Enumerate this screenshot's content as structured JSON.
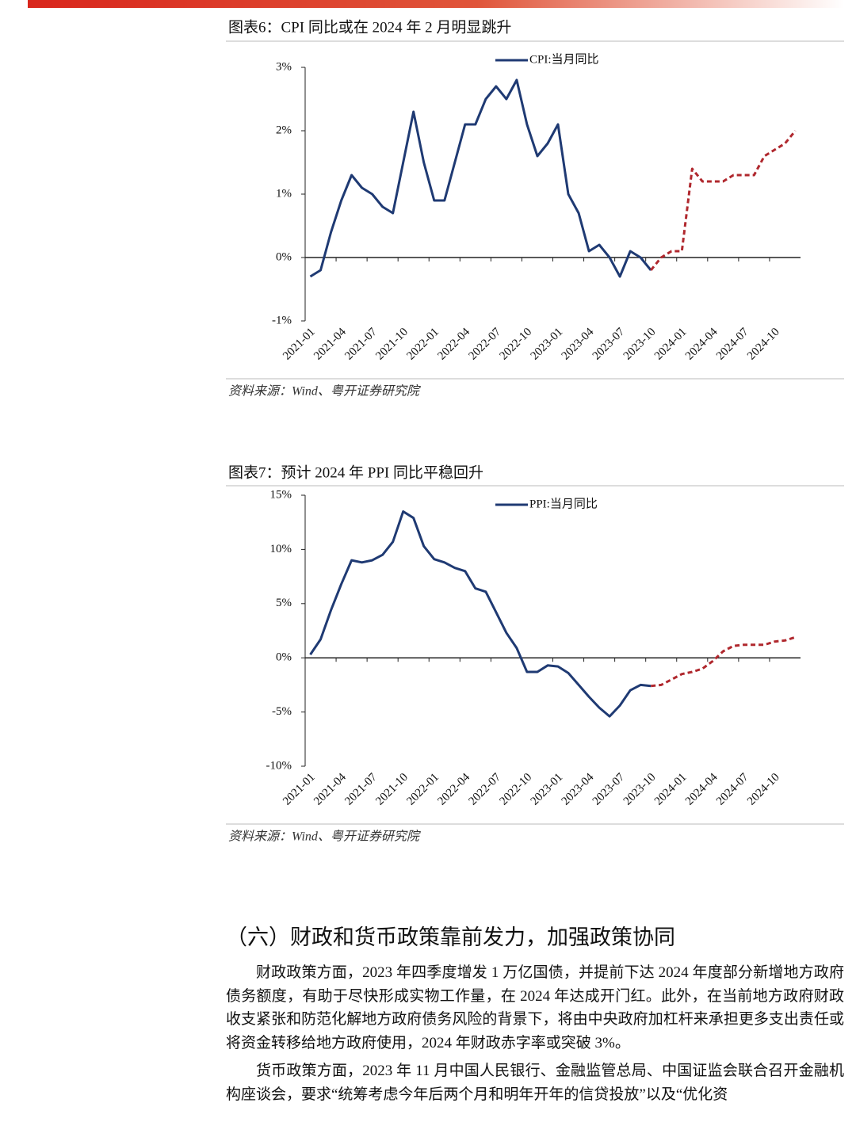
{
  "chart_data": [
    {
      "type": "line",
      "title": "图表6：CPI 同比或在 2024 年 2 月明显跳升",
      "source": "资料来源：Wind、粤开证券研究院",
      "categories": [
        "2021-01",
        null,
        null,
        "2021-04",
        null,
        null,
        "2021-07",
        null,
        null,
        "2021-10",
        null,
        null,
        "2022-01",
        null,
        null,
        "2022-04",
        null,
        null,
        "2022-07",
        null,
        null,
        "2022-10",
        null,
        null,
        "2023-01",
        null,
        null,
        "2023-04",
        null,
        null,
        "2023-07",
        null,
        null,
        "2023-10",
        null,
        null,
        "2024-01",
        null,
        null,
        "2024-04",
        null,
        null,
        "2024-07",
        null,
        null,
        "2024-10",
        null,
        null
      ],
      "series": [
        {
          "name": "CPI:当月同比",
          "color": "#1f3a73",
          "line_style": "solid",
          "values": [
            -0.3,
            -0.2,
            0.4,
            0.9,
            1.3,
            1.1,
            1.0,
            0.8,
            0.7,
            1.5,
            2.3,
            1.5,
            0.9,
            0.9,
            1.5,
            2.1,
            2.1,
            2.5,
            2.7,
            2.5,
            2.8,
            2.1,
            1.6,
            1.8,
            2.1,
            1.0,
            0.7,
            0.1,
            0.2,
            0.0,
            -0.3,
            0.1,
            0.0,
            -0.2,
            null,
            null,
            null,
            null,
            null,
            null,
            null,
            null,
            null,
            null,
            null,
            null,
            null,
            null
          ]
        },
        {
          "color": "#b0282e",
          "line_style": "dashed",
          "values": [
            null,
            null,
            null,
            null,
            null,
            null,
            null,
            null,
            null,
            null,
            null,
            null,
            null,
            null,
            null,
            null,
            null,
            null,
            null,
            null,
            null,
            null,
            null,
            null,
            null,
            null,
            null,
            null,
            null,
            null,
            null,
            null,
            null,
            -0.2,
            0.0,
            0.1,
            0.1,
            1.4,
            1.2,
            1.2,
            1.2,
            1.3,
            1.3,
            1.3,
            1.6,
            1.7,
            1.8,
            2.0
          ]
        }
      ],
      "ylim": [
        -1,
        3
      ],
      "yticks": [
        {
          "value": -1,
          "label": "-1%"
        },
        {
          "value": 0,
          "label": "0%"
        },
        {
          "value": 1,
          "label": "1%"
        },
        {
          "value": 2,
          "label": "2%"
        },
        {
          "value": 3,
          "label": "3%"
        }
      ],
      "grid": false,
      "legend": "top"
    },
    {
      "type": "line",
      "title": "图表7：预计 2024 年 PPI 同比平稳回升",
      "source": "资料来源：Wind、粤开证券研究院",
      "categories": [
        "2021-01",
        null,
        null,
        "2021-04",
        null,
        null,
        "2021-07",
        null,
        null,
        "2021-10",
        null,
        null,
        "2022-01",
        null,
        null,
        "2022-04",
        null,
        null,
        "2022-07",
        null,
        null,
        "2022-10",
        null,
        null,
        "2023-01",
        null,
        null,
        "2023-04",
        null,
        null,
        "2023-07",
        null,
        null,
        "2023-10",
        null,
        null,
        "2024-01",
        null,
        null,
        "2024-04",
        null,
        null,
        "2024-07",
        null,
        null,
        "2024-10",
        null,
        null
      ],
      "series": [
        {
          "name": "PPI:当月同比",
          "color": "#1f3a73",
          "line_style": "solid",
          "values": [
            0.3,
            1.7,
            4.4,
            6.8,
            9.0,
            8.8,
            9.0,
            9.5,
            10.7,
            13.5,
            12.9,
            10.3,
            9.1,
            8.8,
            8.3,
            8.0,
            6.4,
            6.1,
            4.2,
            2.3,
            0.9,
            -1.3,
            -1.3,
            -0.7,
            -0.8,
            -1.4,
            -2.5,
            -3.6,
            -4.6,
            -5.4,
            -4.4,
            -3.0,
            -2.5,
            -2.6,
            null,
            null,
            null,
            null,
            null,
            null,
            null,
            null,
            null,
            null,
            null,
            null,
            null,
            null
          ]
        },
        {
          "color": "#b0282e",
          "line_style": "dashed",
          "values": [
            null,
            null,
            null,
            null,
            null,
            null,
            null,
            null,
            null,
            null,
            null,
            null,
            null,
            null,
            null,
            null,
            null,
            null,
            null,
            null,
            null,
            null,
            null,
            null,
            null,
            null,
            null,
            null,
            null,
            null,
            null,
            null,
            null,
            -2.6,
            -2.5,
            -2.0,
            -1.5,
            -1.3,
            -1.0,
            -0.3,
            0.6,
            1.1,
            1.2,
            1.2,
            1.2,
            1.5,
            1.6,
            1.9
          ]
        }
      ],
      "ylim": [
        -10,
        15
      ],
      "yticks": [
        {
          "value": -10,
          "label": "-10%"
        },
        {
          "value": -5,
          "label": "-5%"
        },
        {
          "value": 0,
          "label": "0%"
        },
        {
          "value": 5,
          "label": "5%"
        },
        {
          "value": 10,
          "label": "10%"
        },
        {
          "value": 15,
          "label": "15%"
        }
      ],
      "grid": false,
      "legend": "top"
    }
  ],
  "section": {
    "heading": "（六）财政和货币政策靠前发力，加强政策协同",
    "paragraphs": [
      "财政政策方面，2023 年四季度增发 1 万亿国债，并提前下达 2024 年度部分新增地方政府债务额度，有助于尽快形成实物工作量，在 2024 年达成开门红。此外，在当前地方政府财政收支紧张和防范化解地方政府债务风险的背景下，将由中央政府加杠杆来承担更多支出责任或将资金转移给地方政府使用，2024 年财政赤字率或突破 3%。",
      "货币政策方面，2023 年 11 月中国人民银行、金融监管总局、中国证监会联合召开金融机构座谈会，要求“统筹考虑今年后两个月和明年开年的信贷投放”以及“优化资"
    ]
  }
}
